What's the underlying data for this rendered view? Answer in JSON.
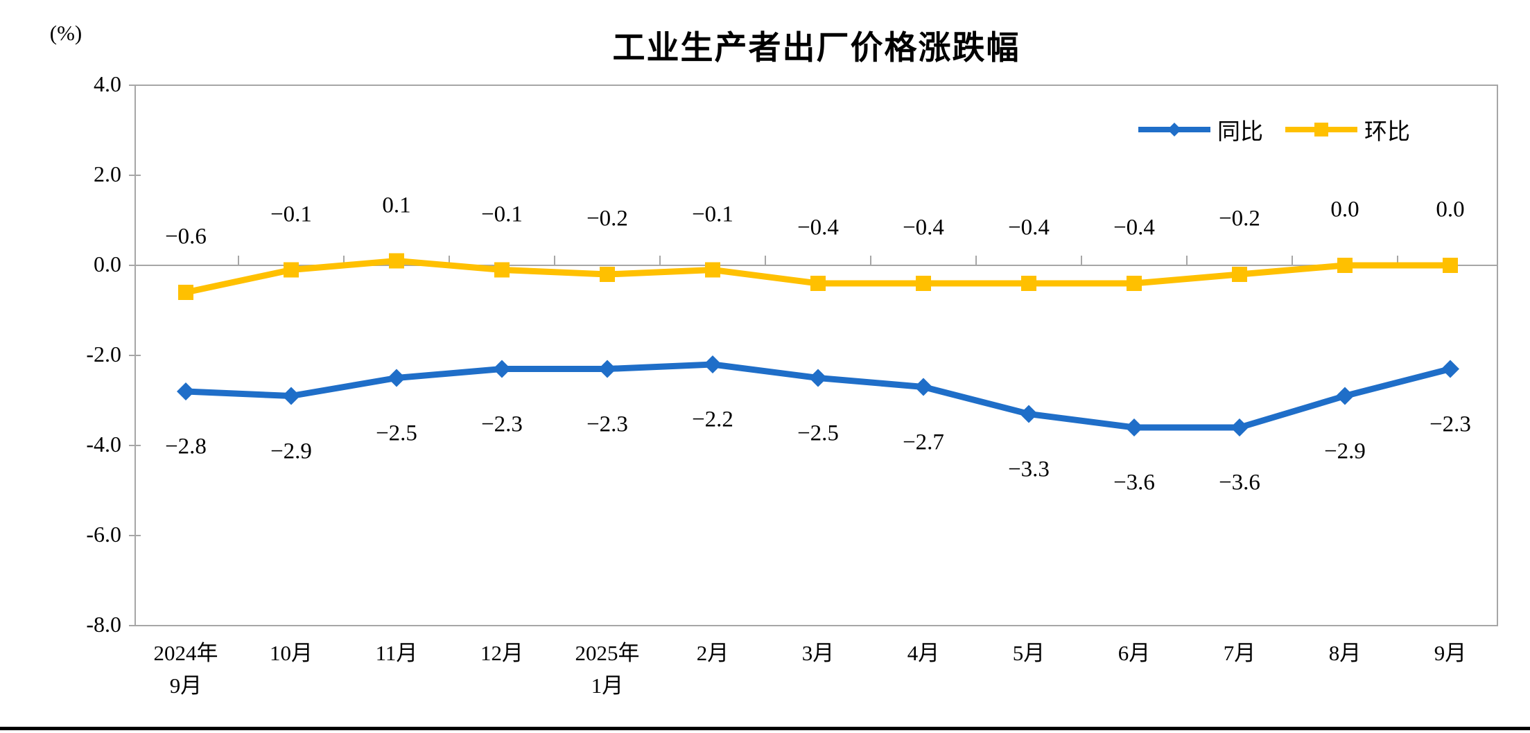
{
  "page": {
    "background": "#ffffff",
    "bottom_rule_color": "#000000"
  },
  "chart_data": {
    "type": "line",
    "title": "工业生产者出厂价格涨跌幅",
    "unit_label": "(%)",
    "categories": [
      "2024年\n9月",
      "10月",
      "11月",
      "12月",
      "2025年\n1月",
      "2月",
      "3月",
      "4月",
      "5月",
      "6月",
      "7月",
      "8月",
      "9月"
    ],
    "y_ticks": [
      "4.0",
      "2.0",
      "0.0",
      "-2.0",
      "-4.0",
      "-6.0",
      "-8.0"
    ],
    "ylim": [
      -8.0,
      4.0
    ],
    "axis_color": "#A6A6A6",
    "grid": "zero-line-only",
    "legend_position": "top-right-inside",
    "series": [
      {
        "name": "同比",
        "color": "#1F6EC8",
        "marker": "diamond",
        "label_side": "below",
        "values": [
          -2.8,
          -2.9,
          -2.5,
          -2.3,
          -2.3,
          -2.2,
          -2.5,
          -2.7,
          -3.3,
          -3.6,
          -3.6,
          -2.9,
          -2.3
        ],
        "labels": [
          "−2.8",
          "−2.9",
          "−2.5",
          "−2.3",
          "−2.3",
          "−2.2",
          "−2.5",
          "−2.7",
          "−3.3",
          "−3.6",
          "−3.6",
          "−2.9",
          "−2.3"
        ]
      },
      {
        "name": "环比",
        "color": "#FFC000",
        "marker": "square",
        "label_side": "above",
        "values": [
          -0.6,
          -0.1,
          0.1,
          -0.1,
          -0.2,
          -0.1,
          -0.4,
          -0.4,
          -0.4,
          -0.4,
          -0.2,
          0.0,
          0.0
        ],
        "labels": [
          "−0.6",
          "−0.1",
          "0.1",
          "−0.1",
          "−0.2",
          "−0.1",
          "−0.4",
          "−0.4",
          "−0.4",
          "−0.4",
          "−0.2",
          "0.0",
          "0.0"
        ]
      }
    ]
  }
}
